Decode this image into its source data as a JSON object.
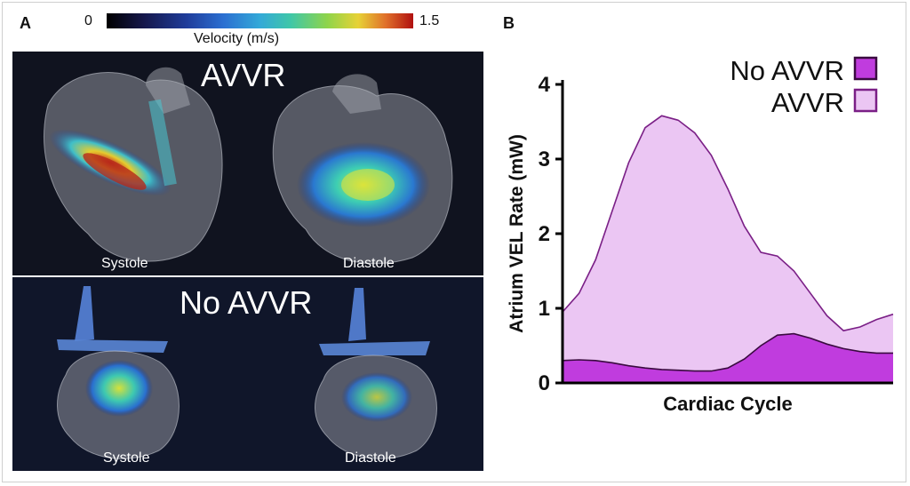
{
  "panel_a": {
    "letter": "A",
    "colorbar": {
      "min_label": "0",
      "max_label": "1.5",
      "title": "Velocity (m/s)"
    },
    "top": {
      "title": "AVVR",
      "left_label": "Systole",
      "right_label": "Diastole"
    },
    "bottom": {
      "title": "No AVVR",
      "left_label": "Systole",
      "right_label": "Diastole"
    }
  },
  "panel_b": {
    "letter": "B"
  },
  "chart_data": {
    "type": "area",
    "xlabel": "Cardiac Cycle",
    "ylabel": "Atrium VEL Rate (mW)",
    "ylim": [
      0,
      4
    ],
    "yticks": [
      "0",
      "1",
      "2",
      "3",
      "4"
    ],
    "x": [
      0,
      0.05,
      0.1,
      0.15,
      0.2,
      0.25,
      0.3,
      0.35,
      0.4,
      0.45,
      0.5,
      0.55,
      0.6,
      0.65,
      0.7,
      0.75,
      0.8,
      0.85,
      0.9,
      0.95,
      1.0
    ],
    "legend_position": "top-right",
    "series": [
      {
        "name": "AVVR",
        "fill": "#ebc6f3",
        "stroke": "#7a1f86",
        "values": [
          0.95,
          1.2,
          1.65,
          2.3,
          2.95,
          3.42,
          3.58,
          3.52,
          3.35,
          3.05,
          2.6,
          2.1,
          1.75,
          1.7,
          1.5,
          1.2,
          0.9,
          0.7,
          0.75,
          0.85,
          0.92
        ]
      },
      {
        "name": "No AVVR",
        "fill": "#c03cde",
        "stroke": "#3a0a40",
        "values": [
          0.3,
          0.31,
          0.3,
          0.27,
          0.23,
          0.2,
          0.18,
          0.17,
          0.16,
          0.16,
          0.2,
          0.32,
          0.5,
          0.64,
          0.66,
          0.6,
          0.52,
          0.46,
          0.42,
          0.4,
          0.4
        ]
      }
    ]
  }
}
